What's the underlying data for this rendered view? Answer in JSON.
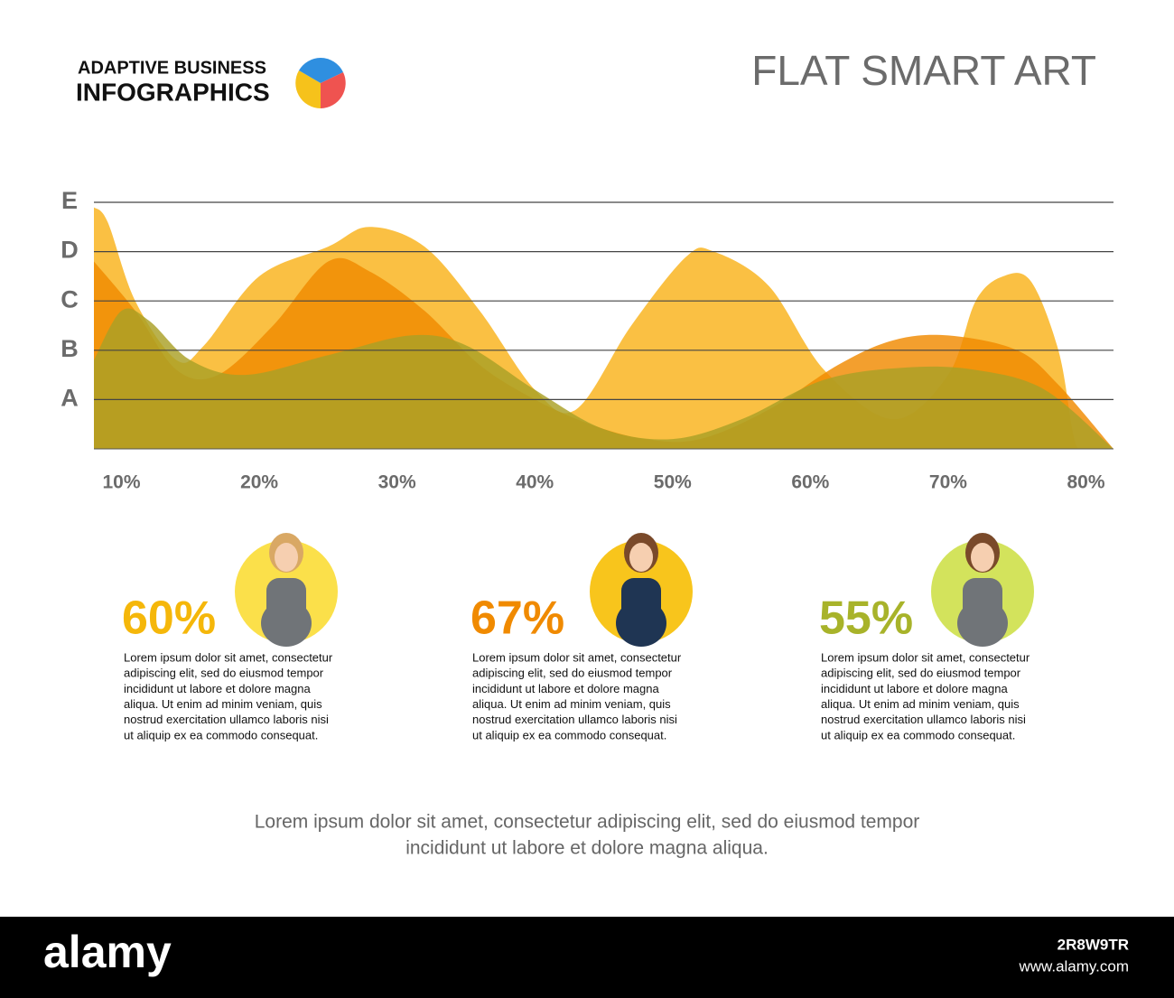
{
  "header": {
    "brand_line1": "ADAPTIVE BUSINESS",
    "brand_line2": "INFOGRAPHICS",
    "title": "FLAT SMART ART"
  },
  "chart_data": {
    "type": "area",
    "xlim": [
      8,
      82
    ],
    "xticks": [
      {
        "value": 10,
        "label": "10%"
      },
      {
        "value": 20,
        "label": "20%"
      },
      {
        "value": 30,
        "label": "30%"
      },
      {
        "value": 40,
        "label": "40%"
      },
      {
        "value": 50,
        "label": "50%"
      },
      {
        "value": 60,
        "label": "60%"
      },
      {
        "value": 70,
        "label": "70%"
      },
      {
        "value": 80,
        "label": "80%"
      }
    ],
    "ylim": [
      0,
      5
    ],
    "yticks": [
      {
        "value": 1,
        "label": "A"
      },
      {
        "value": 2,
        "label": "B"
      },
      {
        "value": 3,
        "label": "C"
      },
      {
        "value": 4,
        "label": "D"
      },
      {
        "value": 5,
        "label": "E"
      }
    ],
    "grid": true,
    "series": [
      {
        "color": "#f9b21a",
        "x": [
          8,
          9,
          11,
          14,
          16,
          20,
          25,
          28,
          32,
          36,
          40,
          43,
          47,
          51,
          53,
          57,
          61,
          66,
          70,
          72,
          74,
          76,
          78,
          79,
          79.4
        ],
        "values": [
          4.9,
          4.6,
          3.0,
          1.8,
          2.1,
          3.5,
          4.1,
          4.5,
          4.1,
          2.8,
          1.2,
          0.8,
          2.5,
          3.9,
          4.0,
          3.3,
          1.6,
          0.6,
          1.5,
          3.0,
          3.5,
          3.4,
          2.0,
          0.4,
          0
        ]
      },
      {
        "color": "#f08a00",
        "x": [
          8,
          11,
          14,
          17,
          21,
          25,
          28,
          32,
          36,
          40,
          44,
          48,
          52,
          57,
          62,
          66,
          70,
          75,
          78,
          82
        ],
        "values": [
          3.8,
          2.8,
          1.6,
          1.5,
          2.5,
          3.8,
          3.6,
          2.8,
          1.7,
          1.0,
          0.5,
          0.2,
          0.2,
          0.8,
          1.7,
          2.2,
          2.3,
          2.0,
          1.3,
          0
        ]
      },
      {
        "color": "#a9a026",
        "x": [
          8,
          10,
          12,
          15,
          19,
          25,
          31,
          35,
          40,
          45,
          50,
          55,
          61,
          67,
          72,
          77,
          82
        ],
        "values": [
          1.8,
          2.8,
          2.6,
          1.8,
          1.5,
          1.9,
          2.3,
          2.1,
          1.2,
          0.4,
          0.2,
          0.6,
          1.4,
          1.65,
          1.6,
          1.2,
          0
        ]
      }
    ]
  },
  "cards": [
    {
      "percent": "60%",
      "color": "#f5b70a",
      "circle": "#fbe04a",
      "body": [
        "Lorem ipsum dolor sit amet, consectetur",
        "adipiscing elit, sed do eiusmod tempor",
        "incididunt ut labore et dolore magna",
        "aliqua. Ut enim ad minim veniam, quis",
        "nostrud exercitation ullamco laboris nisi",
        "ut aliquip ex ea commodo consequat."
      ]
    },
    {
      "percent": "67%",
      "color": "#f08a00",
      "circle": "#f8c51c",
      "body": [
        "Lorem ipsum dolor sit amet, consectetur",
        "adipiscing elit, sed do eiusmod tempor",
        "incididunt ut labore et dolore magna",
        "aliqua. Ut enim ad minim veniam, quis",
        "nostrud exercitation ullamco laboris nisi",
        "ut aliquip ex ea commodo consequat."
      ]
    },
    {
      "percent": "55%",
      "color": "#a8b32a",
      "circle": "#d3e35c",
      "body": [
        "Lorem ipsum dolor sit amet, consectetur",
        "adipiscing elit, sed do eiusmod tempor",
        "incididunt ut labore et dolore magna",
        "aliqua. Ut enim ad minim veniam, quis",
        "nostrud exercitation ullamco laboris nisi",
        "ut aliquip ex ea commodo consequat."
      ]
    }
  ],
  "footer": [
    "Lorem ipsum dolor sit amet, consectetur adipiscing elit, sed do eiusmod tempor",
    "incididunt ut labore et dolore magna aliqua."
  ],
  "watermark": {
    "brand": "alamy",
    "id": "2R8W9TR",
    "url": "www.alamy.com"
  }
}
